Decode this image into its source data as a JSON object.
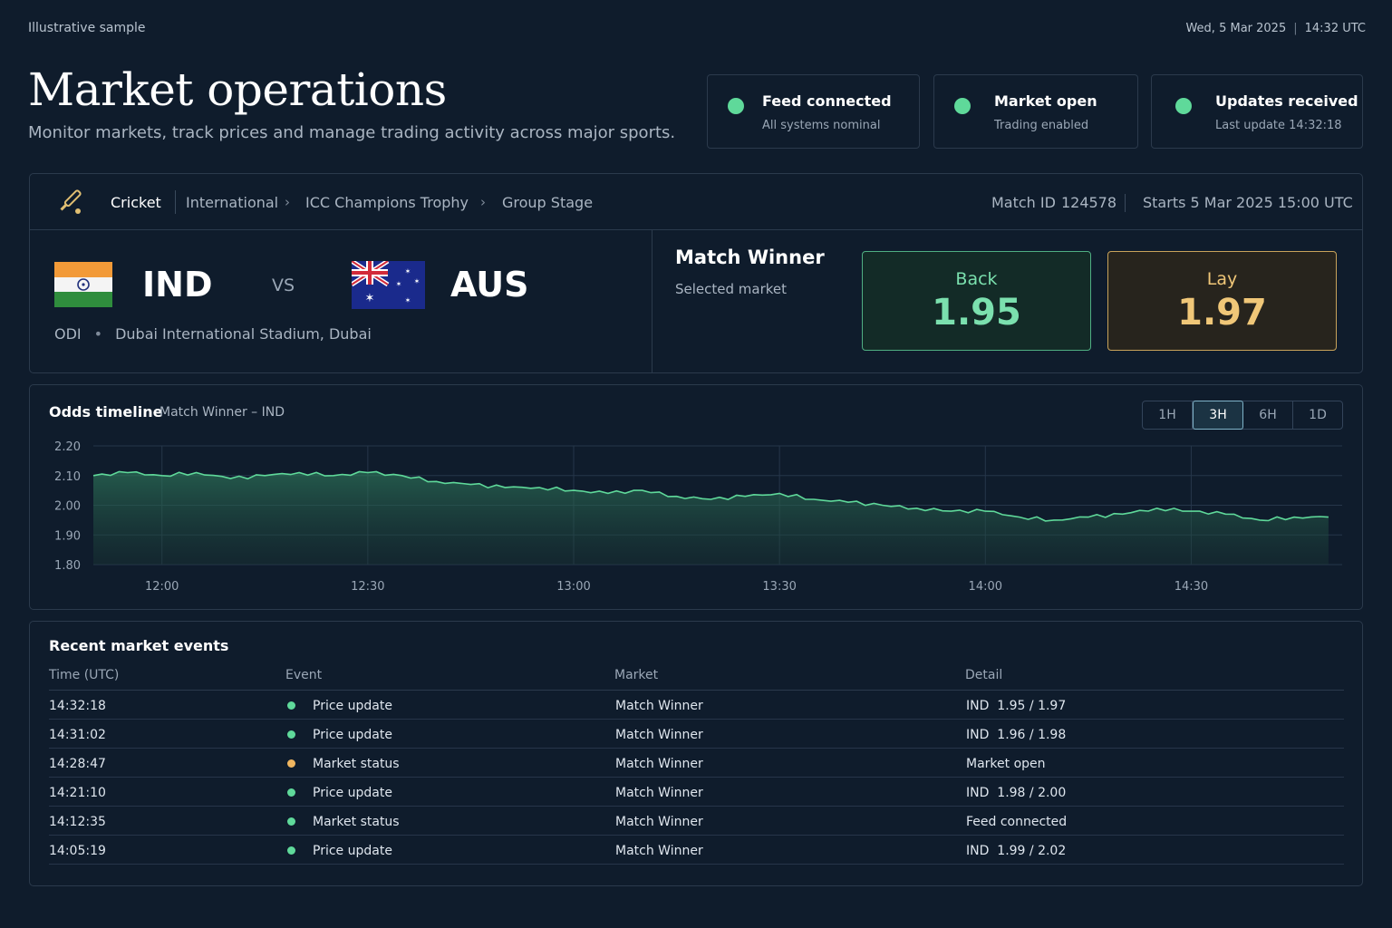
{
  "top": {
    "sample_label": "Illustrative sample",
    "date": "Wed, 5 Mar 2025",
    "time": "14:32 UTC"
  },
  "header": {
    "title": "Market operations",
    "subtitle": "Monitor markets, track prices and manage trading activity across major sports."
  },
  "status_cards": [
    {
      "title": "Feed connected",
      "subtitle": "All systems nominal",
      "color": "#5fd99a"
    },
    {
      "title": "Market open",
      "subtitle": "Trading enabled",
      "color": "#5fd99a"
    },
    {
      "title": "Updates received",
      "subtitle": "Last update 14:32:18",
      "color": "#5fd99a"
    }
  ],
  "match": {
    "sport_icon": "cricket-bat-icon",
    "breadcrumb": {
      "sport": "Cricket",
      "category": "International",
      "competition": "ICC Champions Trophy",
      "stage": "Group Stage",
      "separator": "›"
    },
    "match_id_label": "Match ID",
    "match_id": "124578",
    "starts": "Starts 5 Mar 2025 15:00 UTC",
    "home": {
      "code": "IND",
      "flag": "india-flag-icon"
    },
    "vs": "VS",
    "away": {
      "code": "AUS",
      "flag": "australia-flag-icon"
    },
    "format": "ODI",
    "venue": "Dubai International Stadium, Dubai",
    "bullet": "•",
    "market": {
      "title": "Match Winner",
      "subtitle": "Selected market",
      "back_label": "Back",
      "back_price": "1.95",
      "lay_label": "Lay",
      "lay_price": "1.97"
    }
  },
  "chart": {
    "title": "Odds timeline",
    "subtitle": "Match Winner – IND",
    "ranges": [
      "1H",
      "3H",
      "6H",
      "1D"
    ],
    "active_range": "3H"
  },
  "chart_data": {
    "type": "area",
    "title": "Odds timeline",
    "xlabel": "",
    "ylabel": "",
    "ylim": [
      1.8,
      2.2
    ],
    "y_ticks": [
      "2.20",
      "2.10",
      "2.00",
      "1.90",
      "1.80"
    ],
    "x_ticks": [
      "12:00",
      "12:30",
      "13:00",
      "13:30",
      "14:00",
      "14:30"
    ],
    "x_range_minutes": [
      -10,
      172
    ],
    "grid": true,
    "series": [
      {
        "color": "#5fd99a",
        "points": [
          [
            -10,
            2.1
          ],
          [
            -5,
            2.11
          ],
          [
            0,
            2.1
          ],
          [
            5,
            2.11
          ],
          [
            10,
            2.09
          ],
          [
            15,
            2.1
          ],
          [
            20,
            2.11
          ],
          [
            25,
            2.1
          ],
          [
            30,
            2.11
          ],
          [
            35,
            2.1
          ],
          [
            40,
            2.08
          ],
          [
            45,
            2.07
          ],
          [
            50,
            2.06
          ],
          [
            55,
            2.06
          ],
          [
            60,
            2.05
          ],
          [
            65,
            2.04
          ],
          [
            70,
            2.05
          ],
          [
            75,
            2.03
          ],
          [
            80,
            2.02
          ],
          [
            85,
            2.03
          ],
          [
            90,
            2.04
          ],
          [
            95,
            2.02
          ],
          [
            100,
            2.01
          ],
          [
            105,
            2.0
          ],
          [
            110,
            1.99
          ],
          [
            115,
            1.98
          ],
          [
            120,
            1.98
          ],
          [
            125,
            1.96
          ],
          [
            130,
            1.95
          ],
          [
            135,
            1.96
          ],
          [
            140,
            1.97
          ],
          [
            145,
            1.99
          ],
          [
            150,
            1.98
          ],
          [
            155,
            1.97
          ],
          [
            160,
            1.95
          ],
          [
            165,
            1.96
          ],
          [
            170,
            1.96
          ]
        ]
      }
    ]
  },
  "events": {
    "title": "Recent market events",
    "columns": [
      "Time (UTC)",
      "Event",
      "Market",
      "Detail"
    ],
    "rows": [
      {
        "time": "14:32:18",
        "event": "Price update",
        "market": "Match Winner",
        "detail": "IND  1.95 / 1.97",
        "dot": "#5fd99a"
      },
      {
        "time": "14:31:02",
        "event": "Price update",
        "market": "Match Winner",
        "detail": "IND  1.96 / 1.98",
        "dot": "#5fd99a"
      },
      {
        "time": "14:28:47",
        "event": "Market status",
        "market": "Match Winner",
        "detail": "Market open",
        "dot": "#f0b660"
      },
      {
        "time": "14:21:10",
        "event": "Price update",
        "market": "Match Winner",
        "detail": "IND  1.98 / 2.00",
        "dot": "#5fd99a"
      },
      {
        "time": "14:12:35",
        "event": "Market status",
        "market": "Match Winner",
        "detail": "Feed connected",
        "dot": "#5fd99a"
      },
      {
        "time": "14:05:19",
        "event": "Price update",
        "market": "Match Winner",
        "detail": "IND  1.99 / 2.02",
        "dot": "#5fd99a"
      }
    ]
  }
}
